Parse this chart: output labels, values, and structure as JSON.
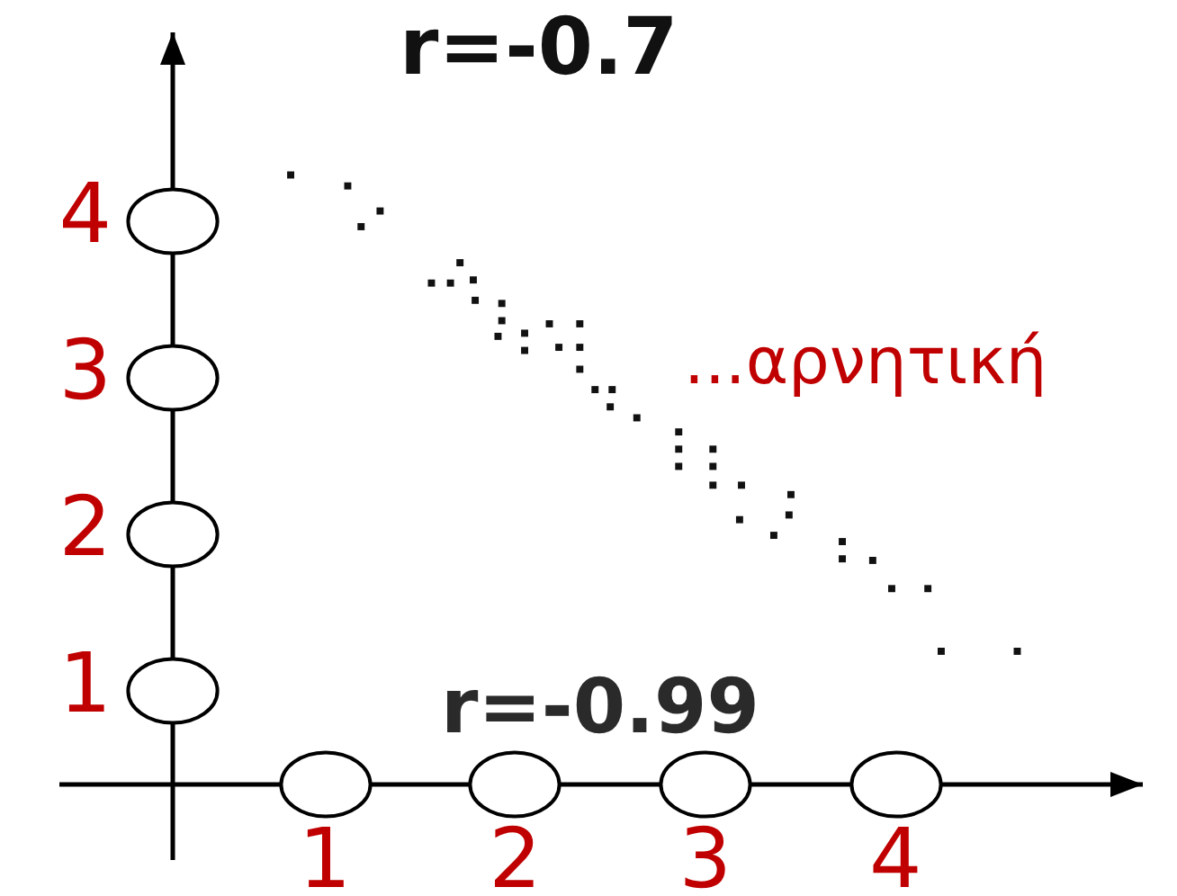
{
  "chart_data": {
    "type": "scatter",
    "x": [
      0.82,
      1.12,
      1.29,
      1.19,
      1.71,
      1.56,
      1.66,
      1.78,
      1.79,
      1.93,
      1.93,
      1.91,
      2.05,
      2.05,
      2.18,
      2.34,
      2.23,
      2.34,
      2.34,
      2.42,
      2.51,
      2.5,
      2.64,
      2.86,
      2.86,
      2.86,
      3.04,
      3.04,
      3.04,
      3.19,
      3.45,
      3.44,
      3.18,
      3.36,
      3.72,
      3.72,
      3.88,
      3.98,
      4.17,
      4.24,
      4.64
    ],
    "values": [
      4.29,
      4.22,
      4.06,
      3.96,
      3.73,
      3.6,
      3.6,
      3.62,
      3.49,
      3.47,
      3.36,
      3.26,
      3.28,
      3.17,
      3.34,
      3.34,
      3.19,
      3.19,
      3.05,
      2.92,
      2.92,
      2.81,
      2.74,
      2.65,
      2.54,
      2.43,
      2.54,
      2.43,
      2.31,
      2.31,
      2.25,
      2.12,
      2.09,
      1.99,
      1.95,
      1.84,
      1.83,
      1.65,
      1.65,
      1.25,
      1.25
    ],
    "color": "#111111",
    "marker": "square",
    "xlim": [
      0.2,
      5.3
    ],
    "ylim": [
      0.4,
      5.2
    ],
    "xticks": [
      1,
      2,
      3,
      4
    ],
    "yticks": [
      1,
      2,
      3,
      4
    ],
    "annotations": [
      "r=-0.7",
      "...αρνητική",
      "r=-0.99"
    ],
    "grid": false,
    "legend": false
  }
}
